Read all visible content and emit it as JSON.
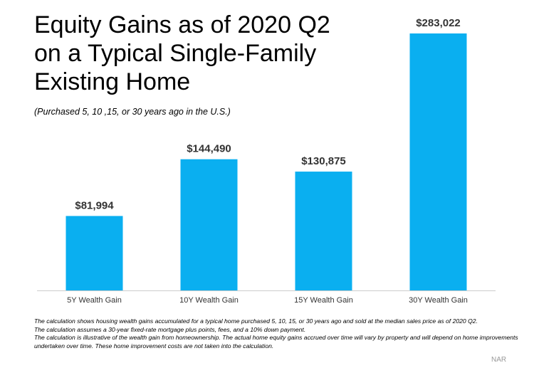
{
  "chart_data": {
    "type": "bar",
    "title": [
      "Equity Gains as of 2020 Q2",
      "on a Typical Single-Family",
      "Existing Home"
    ],
    "subtitle": "(Purchased 5, 10 ,15, or 30 years ago in the U.S.)",
    "categories": [
      "5Y Wealth Gain",
      "10Y Wealth Gain",
      "15Y Wealth Gain",
      "30Y Wealth Gain"
    ],
    "values": [
      81994,
      144490,
      130875,
      283022
    ],
    "value_labels": [
      "$81,994",
      "$144,490",
      "$130,875",
      "$283,022"
    ],
    "color": "#0aaff0",
    "notes": [
      "The calculation shows housing wealth gains accumulated for a typical home purchased 5, 10, 15, or 30 years ago and sold at the median sales price as of 2020 Q2.",
      "The calculation assumes a 30-year fixed-rate mortgage plus points, fees, and a 10% down payment.",
      "The calculation is illustrative of the wealth gain from homeownership. The actual home equity gains accrued over time will vary by property and will depend on home improvements undertaken over time. These home improvement costs are not taken into the calculation."
    ],
    "source": "NAR"
  }
}
